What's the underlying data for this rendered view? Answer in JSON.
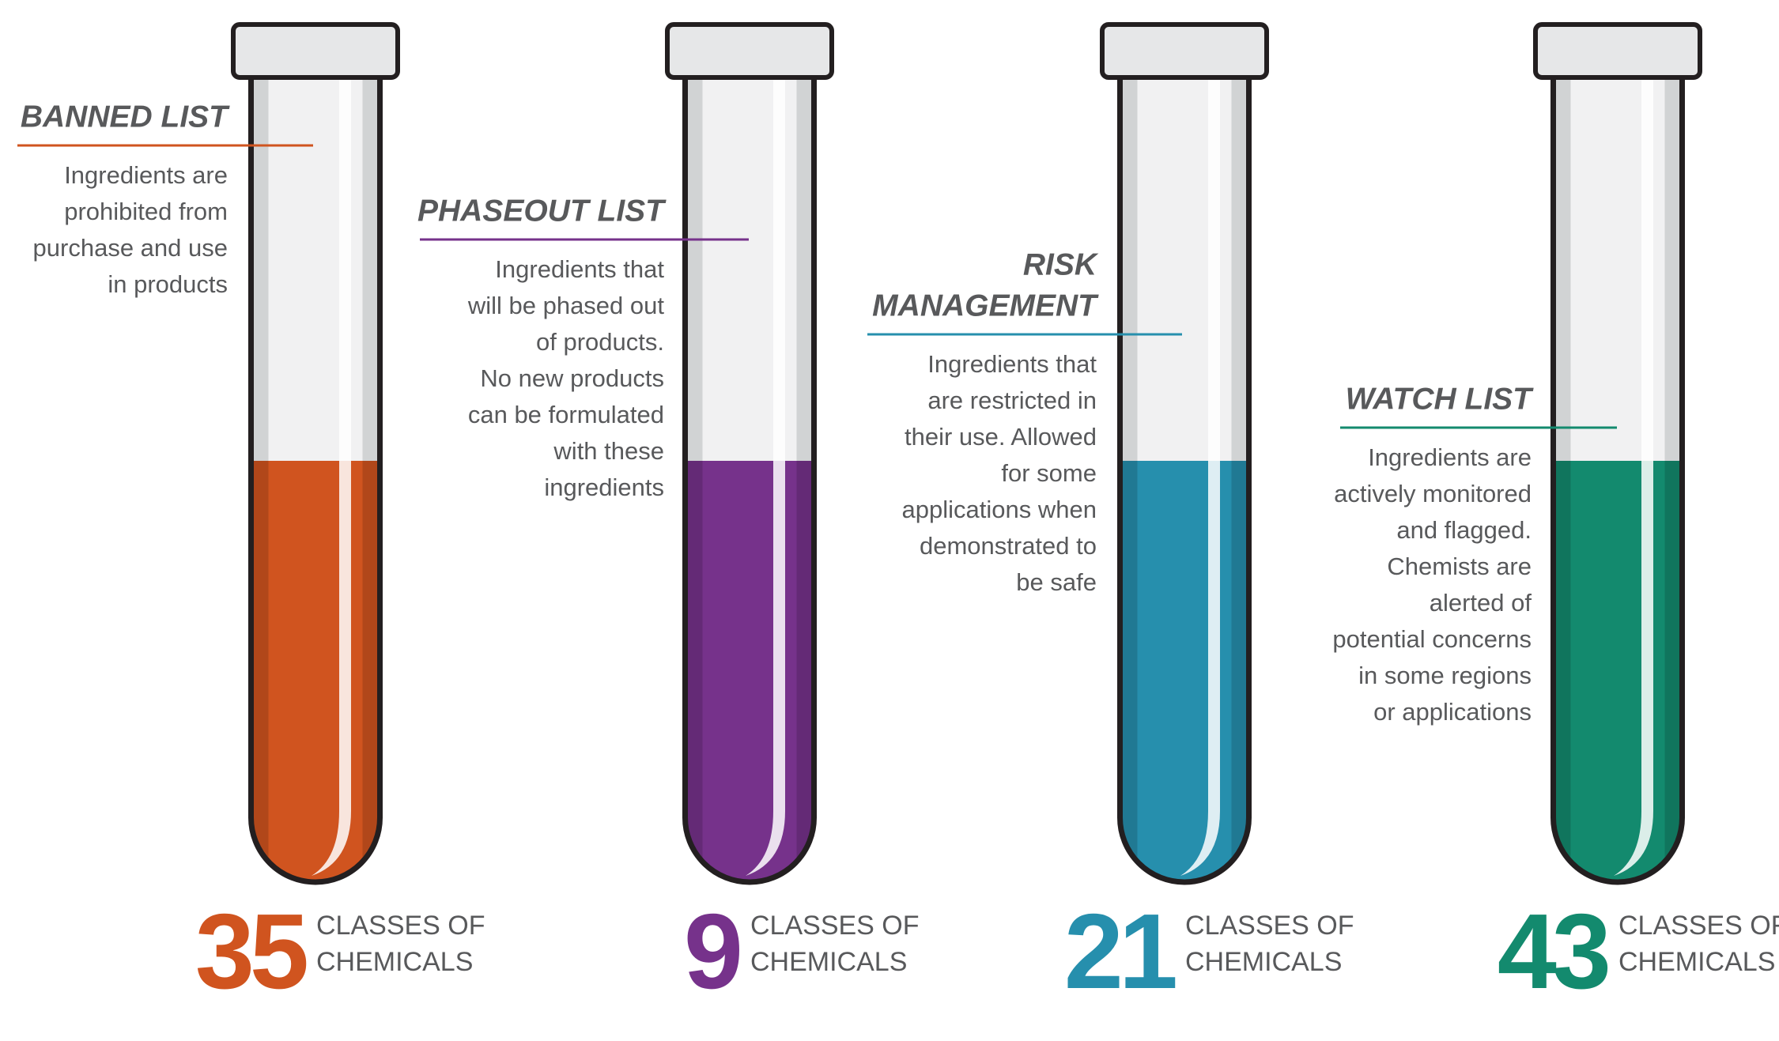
{
  "items": [
    {
      "title": [
        "BANNED LIST"
      ],
      "description": [
        "Ingredients are",
        "prohibited from",
        "purchase and use",
        "in products"
      ],
      "count": 35,
      "unit": [
        "CLASSES OF",
        "CHEMICALS"
      ],
      "color": "#d0541f"
    },
    {
      "title": [
        "PHASEOUT LIST"
      ],
      "description": [
        "Ingredients that",
        "will be phased out",
        "of products.",
        "No new products",
        "can be formulated",
        "with these",
        "ingredients"
      ],
      "count": 9,
      "unit": [
        "CLASSES OF",
        "CHEMICALS"
      ],
      "color": "#76328b"
    },
    {
      "title": [
        "RISK",
        "MANAGEMENT"
      ],
      "description": [
        "Ingredients that",
        "are restricted in",
        "their use. Allowed",
        "for some",
        "applications when",
        "demonstrated to",
        "be safe"
      ],
      "count": 21,
      "unit": [
        "CLASSES OF",
        "CHEMICALS"
      ],
      "color": "#268fad"
    },
    {
      "title": [
        "WATCH LIST"
      ],
      "description": [
        "Ingredients are",
        "actively monitored",
        "and flagged.",
        "Chemists are",
        "alerted of",
        "potential concerns",
        "in some regions",
        "or applications"
      ],
      "count": 43,
      "unit": [
        "CLASSES OF",
        "CHEMICALS"
      ],
      "color": "#138a6e"
    }
  ]
}
